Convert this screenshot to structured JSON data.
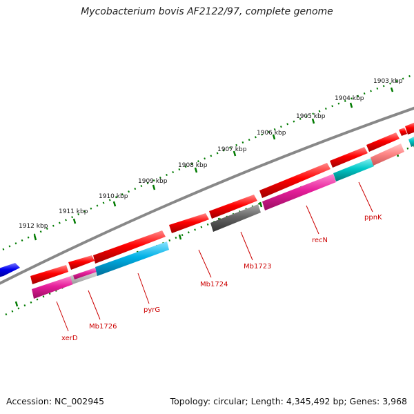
{
  "title": "Mycobacterium bovis AF2122/97, complete genome",
  "footer": {
    "accession": "Accession: NC_002945",
    "summary": "Topology: circular; Length: 4,345,492 bp; Genes: 3,968"
  },
  "colors": {
    "forward_gene": "#ff0000",
    "reverse_gene_magenta": "#e61e9a",
    "reverse_gene_cyan": "#00aadd",
    "backbone": "#888888",
    "tick": "#007a00",
    "label": "#cc0000"
  },
  "scale_labels": [
    "1903 kbp",
    "1904 kbp",
    "1905 kbp",
    "1906 kbp",
    "1907 kbp",
    "1908 kbp",
    "1909 kbp",
    "1910 kbp",
    "1911 kbp",
    "1912 kbp"
  ],
  "gene_labels": [
    "ppnK",
    "recN",
    "Mb1723",
    "Mb1724",
    "pyrG",
    "Mb1726",
    "xerD"
  ]
}
